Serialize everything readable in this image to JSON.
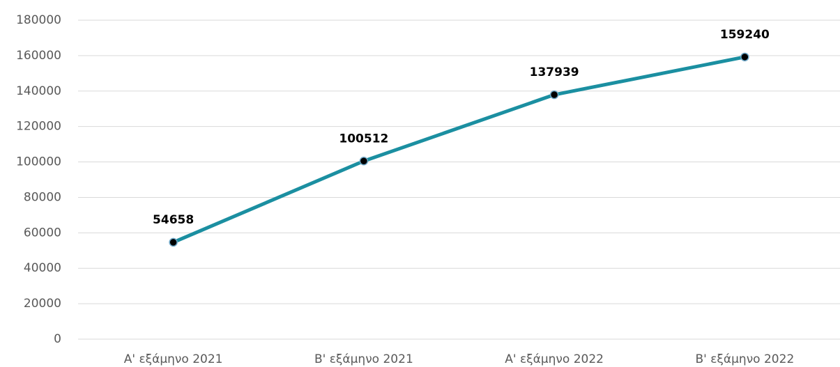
{
  "chart_data": {
    "type": "line",
    "categories": [
      "Α' εξάμηνο 2021",
      "Β' εξάμηνο 2021",
      "Α' εξάμηνο 2022",
      "Β' εξάμηνο 2022"
    ],
    "series": [
      {
        "name": "",
        "color": "#1b8fa1",
        "values": [
          54658,
          100512,
          137939,
          159240
        ]
      }
    ],
    "ylim": [
      0,
      180000
    ],
    "yticks": [
      0,
      20000,
      40000,
      60000,
      80000,
      100000,
      120000,
      140000,
      160000,
      180000
    ],
    "grid": true,
    "data_labels": true
  }
}
